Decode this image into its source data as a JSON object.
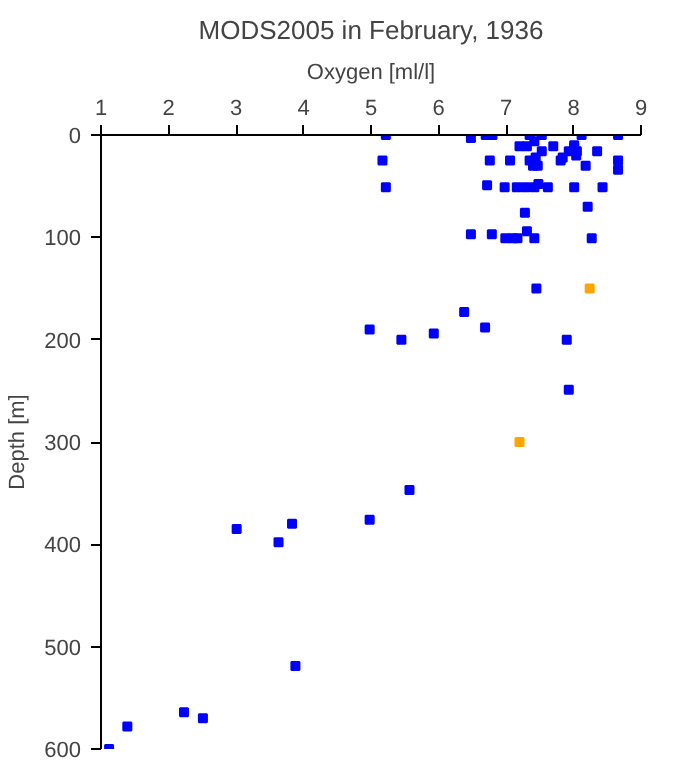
{
  "chart_data": {
    "type": "scatter",
    "title": "MODS2005 in February, 1936",
    "xlabel": "Oxygen [ml/l]",
    "ylabel": "Depth [m]",
    "xlim": [
      1,
      9
    ],
    "xticks": [
      1,
      2,
      3,
      4,
      5,
      6,
      7,
      8,
      9
    ],
    "ylim": [
      600,
      0
    ],
    "yticks": [
      0,
      100,
      200,
      300,
      400,
      500,
      600
    ],
    "grid": false,
    "marker": "square",
    "series": [
      {
        "color": "#0000ff",
        "x": [
          5.22,
          6.48,
          6.7,
          6.8,
          7.35,
          7.53,
          8.12,
          8.66,
          7.2,
          7.31,
          7.7,
          7.42,
          8.01,
          8.01,
          8.05,
          7.93,
          7.53,
          8.35,
          5.17,
          6.76,
          7.06,
          7.35,
          7.44,
          7.4,
          7.47,
          7.81,
          7.84,
          8.04,
          8.18,
          8.66,
          8.66,
          5.22,
          6.72,
          6.98,
          7.16,
          7.29,
          7.42,
          7.48,
          7.62,
          8.01,
          8.43,
          7.28,
          8.21,
          6.48,
          6.79,
          6.99,
          7.1,
          7.17,
          7.31,
          7.42,
          8.27,
          7.45,
          6.38,
          6.69,
          4.98,
          5.45,
          5.93,
          7.9,
          7.93,
          5.57,
          3.01,
          3.83,
          4.98,
          3.63,
          3.88,
          2.23,
          2.51,
          1.39,
          1.12
        ],
        "values": [
          0,
          3,
          0,
          0,
          0,
          0,
          0,
          0,
          11,
          11,
          11,
          6,
          10,
          12,
          16,
          16,
          16,
          16,
          25,
          25,
          25,
          25,
          22,
          30,
          30,
          25,
          22,
          20,
          30,
          25,
          34,
          51,
          49,
          51,
          51,
          51,
          51,
          48,
          51,
          51,
          51,
          76,
          70,
          97,
          97,
          101,
          101,
          101,
          94,
          101,
          101,
          150,
          173,
          188,
          190,
          200,
          194,
          200,
          249,
          347,
          385,
          380,
          376,
          398,
          519,
          564,
          570,
          578,
          600
        ]
      },
      {
        "color": "#ffa500",
        "x": [
          8.24,
          7.2
        ],
        "values": [
          150,
          300
        ]
      }
    ]
  }
}
